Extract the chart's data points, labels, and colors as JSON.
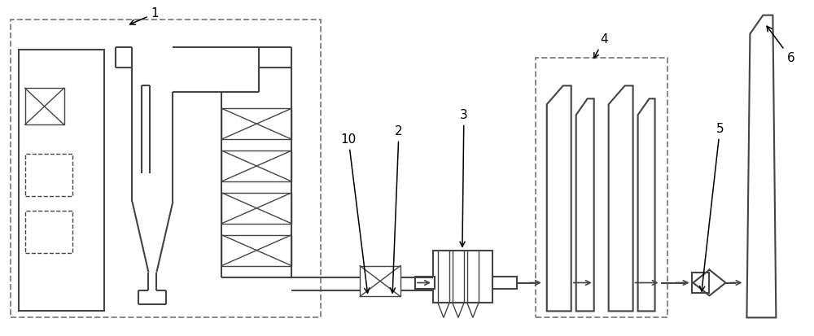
{
  "bg": "#ffffff",
  "lc": "#444444",
  "dc": "#888888",
  "lw": 1.5,
  "tlw": 1.0,
  "fig_w": 10.0,
  "fig_h": 4.13
}
